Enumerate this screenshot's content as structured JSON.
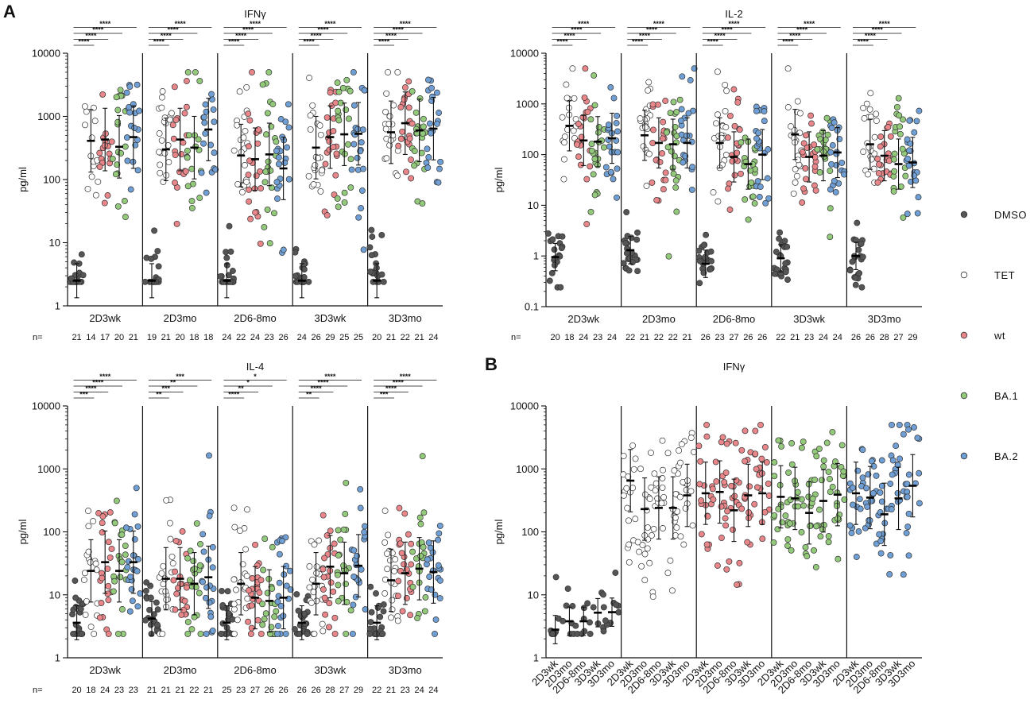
{
  "figure": {
    "panel_letters": [
      "A",
      "B"
    ],
    "legend": [
      {
        "name": "DMSO",
        "color": "#555555"
      },
      {
        "name": "TET",
        "color": "#ffffff"
      },
      {
        "name": "wt",
        "color": "#e8868a"
      },
      {
        "name": "BA.1",
        "color": "#93c97a"
      },
      {
        "name": "BA.2",
        "color": "#6f9fd4"
      }
    ],
    "n_prefix": "n="
  },
  "chart_data": [
    {
      "type": "scatter",
      "title": "IFNγ",
      "ylabel": "pg/ml",
      "yscale": "log",
      "ylim": [
        1,
        10000
      ],
      "yticks": [
        "1",
        "10",
        "100",
        "1000",
        "10000"
      ],
      "groups": [
        "2D3wk",
        "2D3mo",
        "2D6-8mo",
        "3D3wk",
        "3D3mo"
      ],
      "series_per_group": [
        "DMSO",
        "TET",
        "wt",
        "BA.1",
        "BA.2"
      ],
      "medians": [
        [
          2.5,
          410,
          430,
          330,
          470
        ],
        [
          2.5,
          300,
          430,
          320,
          620
        ],
        [
          2.5,
          240,
          210,
          250,
          150
        ],
        [
          2.5,
          320,
          470,
          520,
          530
        ],
        [
          2.5,
          560,
          780,
          600,
          640
        ]
      ],
      "n": [
        [
          21,
          14,
          17,
          20,
          21
        ],
        [
          19,
          21,
          20,
          18,
          18
        ],
        [
          24,
          22,
          24,
          23,
          26
        ],
        [
          24,
          26,
          29,
          25,
          25
        ],
        [
          20,
          21,
          22,
          21,
          24
        ]
      ],
      "significance": [
        [
          "****",
          "****",
          "****",
          "****"
        ],
        [
          "****",
          "****",
          "****",
          "****"
        ],
        [
          "****",
          "****",
          "****",
          "****"
        ],
        [
          "****",
          "****",
          "****",
          "****"
        ],
        [
          "****",
          "****",
          "****",
          "****"
        ]
      ]
    },
    {
      "type": "scatter",
      "title": "IL-2",
      "ylabel": "pg/ml",
      "yscale": "log",
      "ylim": [
        0.1,
        10000
      ],
      "yticks": [
        "0.1",
        "1",
        "10",
        "100",
        "1000",
        "10000"
      ],
      "groups": [
        "2D3wk",
        "2D3mo",
        "2D6-8mo",
        "3D3wk",
        "3D3mo"
      ],
      "series_per_group": [
        "DMSO",
        "TET",
        "wt",
        "BA.1",
        "BA.2"
      ],
      "medians": [
        [
          0.95,
          370,
          190,
          180,
          210
        ],
        [
          1.3,
          240,
          170,
          160,
          170
        ],
        [
          0.7,
          170,
          90,
          65,
          100
        ],
        [
          0.9,
          250,
          90,
          95,
          110
        ],
        [
          1.0,
          160,
          95,
          65,
          70
        ]
      ],
      "n": [
        [
          20,
          18,
          24,
          23,
          24
        ],
        [
          22,
          21,
          22,
          22,
          21
        ],
        [
          26,
          23,
          27,
          26,
          26
        ],
        [
          22,
          21,
          23,
          24,
          24
        ],
        [
          26,
          26,
          28,
          27,
          29
        ]
      ],
      "significance": [
        [
          "****",
          "****",
          "****",
          "****"
        ],
        [
          "****",
          "****",
          "****",
          "****"
        ],
        [
          "****",
          "****",
          "****",
          "****"
        ],
        [
          "****",
          "****",
          "****",
          "****"
        ],
        [
          "****",
          "****",
          "****",
          "****"
        ]
      ]
    },
    {
      "type": "scatter",
      "title": "IL-4",
      "ylabel": "pg/ml",
      "yscale": "log",
      "ylim": [
        1,
        10000
      ],
      "yticks": [
        "1",
        "10",
        "100",
        "1000",
        "10000"
      ],
      "groups": [
        "2D3wk",
        "2D3mo",
        "2D6-8mo",
        "3D3wk",
        "3D3mo"
      ],
      "series_per_group": [
        "DMSO",
        "TET",
        "wt",
        "BA.1",
        "BA.2"
      ],
      "medians": [
        [
          3.6,
          24,
          33,
          24,
          33
        ],
        [
          4.2,
          18,
          18,
          15,
          19
        ],
        [
          3.6,
          15,
          9,
          8,
          9
        ],
        [
          3.6,
          15,
          28,
          22,
          29
        ],
        [
          3.6,
          17,
          22,
          26,
          23
        ]
      ],
      "n": [
        [
          20,
          18,
          24,
          23,
          23
        ],
        [
          21,
          21,
          21,
          22,
          21
        ],
        [
          25,
          23,
          27,
          26,
          26
        ],
        [
          26,
          26,
          28,
          27,
          29
        ],
        [
          22,
          21,
          23,
          24,
          24
        ]
      ],
      "significance": [
        [
          "***",
          "****",
          "****",
          "****"
        ],
        [
          "**",
          "***",
          "**",
          "***"
        ],
        [
          "****",
          "**",
          "*",
          "*"
        ],
        [
          "**",
          "****",
          "****",
          "****"
        ],
        [
          "***",
          "****",
          "****",
          "****"
        ]
      ]
    },
    {
      "type": "scatter",
      "title": "IFNγ",
      "ylabel": "pg/ml",
      "yscale": "log",
      "ylim": [
        1,
        10000
      ],
      "yticks": [
        "1",
        "10",
        "100",
        "1000",
        "10000"
      ],
      "stimuli": [
        "DMSO",
        "TET",
        "wt",
        "BA.1",
        "BA.2"
      ],
      "x_labels": [
        "2D3wk",
        "2D3mo",
        "2D6-8mo",
        "3D3wk",
        "3D3mo"
      ],
      "medians": [
        [
          2.8,
          3.8,
          3.8,
          5.2,
          5.3
        ],
        [
          650,
          230,
          240,
          240,
          380
        ],
        [
          410,
          430,
          220,
          380,
          410
        ],
        [
          360,
          340,
          200,
          310,
          390
        ],
        [
          410,
          350,
          190,
          340,
          540
        ]
      ]
    }
  ]
}
